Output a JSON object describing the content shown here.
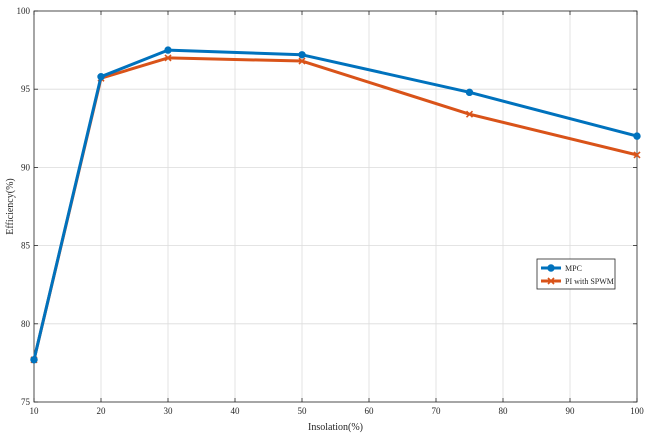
{
  "chart_data": {
    "type": "line",
    "title": "",
    "xlabel": "Insolation(%)",
    "ylabel": "Efficiency(%)",
    "xlim": [
      10,
      100
    ],
    "ylim": [
      75,
      100
    ],
    "xticks": [
      10,
      20,
      30,
      40,
      50,
      60,
      70,
      80,
      90,
      100
    ],
    "yticks": [
      75,
      80,
      85,
      90,
      95,
      100
    ],
    "grid": true,
    "legend_position": "right",
    "series": [
      {
        "name": "MPC",
        "color": "#0072BD",
        "marker": "circle",
        "x": [
          10,
          20,
          30,
          50,
          75,
          100
        ],
        "y": [
          77.7,
          95.8,
          97.5,
          97.2,
          94.8,
          92.0
        ]
      },
      {
        "name": "PI with SPWM",
        "color": "#D95319",
        "marker": "x",
        "x": [
          10,
          20,
          30,
          50,
          75,
          100
        ],
        "y": [
          77.7,
          95.7,
          97.0,
          96.8,
          93.4,
          90.8
        ]
      }
    ]
  }
}
